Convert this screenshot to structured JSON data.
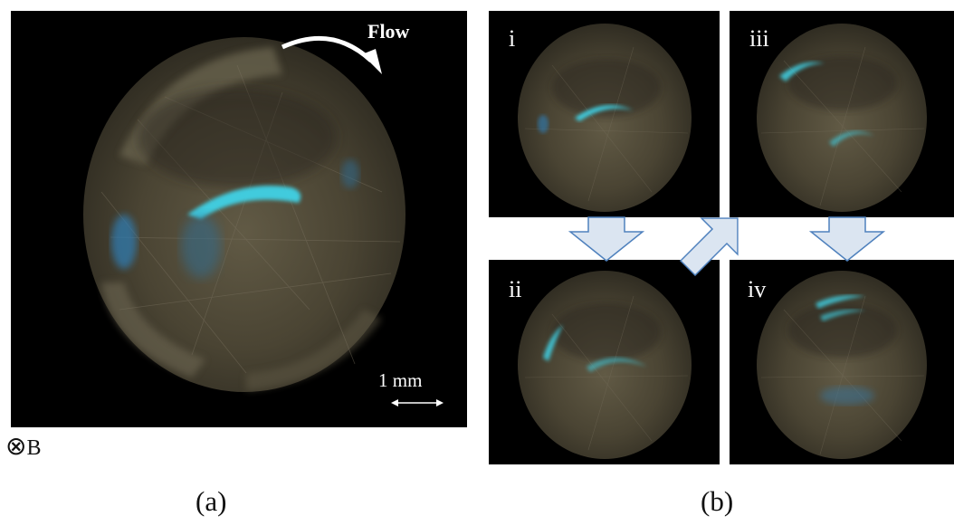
{
  "figure": {
    "panel_a": {
      "flow_label": "Flow",
      "scale_label": "1 mm",
      "field_symbol": "⊗",
      "field_label": "B",
      "caption": "(a)"
    },
    "panel_b": {
      "labels": [
        "i",
        "ii",
        "iii",
        "iv"
      ],
      "caption": "(b)"
    },
    "colors": {
      "background": "#000000",
      "droplet": "#4f4836",
      "glow": "#3fd2e6",
      "arrow_fill": "#dbe5f1",
      "arrow_stroke": "#4f81bd"
    }
  }
}
